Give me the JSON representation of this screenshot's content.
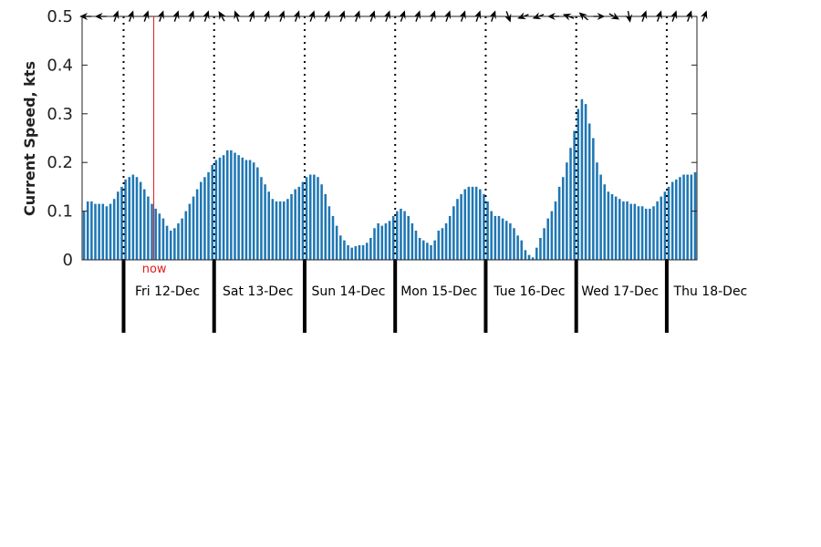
{
  "chart_data": {
    "type": "bar",
    "title": "",
    "xlabel": "",
    "ylabel": "Current Speed, kts",
    "ylim": [
      0,
      0.5
    ],
    "yticks": [
      "0",
      "0.1",
      "0.2",
      "0.3",
      "0.4",
      "0.5"
    ],
    "grid": false,
    "bar_color": "#1f77b4",
    "now_color": "#e31a1c",
    "now_label": "now",
    "now_hour": 19,
    "hours_per_bar": 1,
    "start_hour_before_first_day": 11,
    "days": [
      "Fri 12-Dec",
      "Sat 13-Dec",
      "Sun 14-Dec",
      "Mon 15-Dec",
      "Tue 16-Dec",
      "Wed 17-Dec",
      "Thu 18-Dec"
    ],
    "values": [
      0.1,
      0.12,
      0.12,
      0.115,
      0.115,
      0.115,
      0.11,
      0.115,
      0.125,
      0.14,
      0.15,
      0.165,
      0.17,
      0.175,
      0.17,
      0.16,
      0.145,
      0.13,
      0.115,
      0.105,
      0.095,
      0.085,
      0.07,
      0.06,
      0.065,
      0.075,
      0.085,
      0.1,
      0.115,
      0.13,
      0.145,
      0.16,
      0.17,
      0.18,
      0.195,
      0.205,
      0.21,
      0.215,
      0.225,
      0.225,
      0.22,
      0.215,
      0.21,
      0.205,
      0.205,
      0.2,
      0.19,
      0.17,
      0.155,
      0.14,
      0.125,
      0.12,
      0.12,
      0.12,
      0.125,
      0.135,
      0.145,
      0.15,
      0.16,
      0.17,
      0.175,
      0.175,
      0.17,
      0.155,
      0.135,
      0.11,
      0.09,
      0.07,
      0.05,
      0.04,
      0.03,
      0.025,
      0.028,
      0.03,
      0.03,
      0.035,
      0.045,
      0.065,
      0.075,
      0.07,
      0.075,
      0.08,
      0.09,
      0.1,
      0.105,
      0.1,
      0.09,
      0.075,
      0.06,
      0.045,
      0.04,
      0.035,
      0.03,
      0.04,
      0.06,
      0.065,
      0.075,
      0.09,
      0.11,
      0.125,
      0.135,
      0.145,
      0.15,
      0.15,
      0.15,
      0.145,
      0.135,
      0.12,
      0.1,
      0.09,
      0.09,
      0.085,
      0.08,
      0.075,
      0.065,
      0.05,
      0.04,
      0.02,
      0.01,
      0.005,
      0.025,
      0.045,
      0.065,
      0.085,
      0.1,
      0.12,
      0.15,
      0.17,
      0.2,
      0.23,
      0.265,
      0.31,
      0.33,
      0.32,
      0.28,
      0.25,
      0.2,
      0.175,
      0.155,
      0.14,
      0.135,
      0.13,
      0.125,
      0.12,
      0.12,
      0.115,
      0.115,
      0.11,
      0.11,
      0.105,
      0.105,
      0.11,
      0.12,
      0.13,
      0.14,
      0.15,
      0.16,
      0.165,
      0.17,
      0.175,
      0.175,
      0.175,
      0.18
    ],
    "arrows_heading_deg": [
      -90,
      -90,
      20,
      20,
      20,
      20,
      20,
      20,
      20,
      -30,
      -20,
      20,
      20,
      20,
      20,
      20,
      20,
      20,
      20,
      20,
      20,
      20,
      20,
      20,
      20,
      20,
      20,
      20,
      160,
      -110,
      -110,
      -90,
      -70,
      -50,
      90,
      120,
      170,
      20,
      20,
      20,
      20,
      20
    ]
  }
}
